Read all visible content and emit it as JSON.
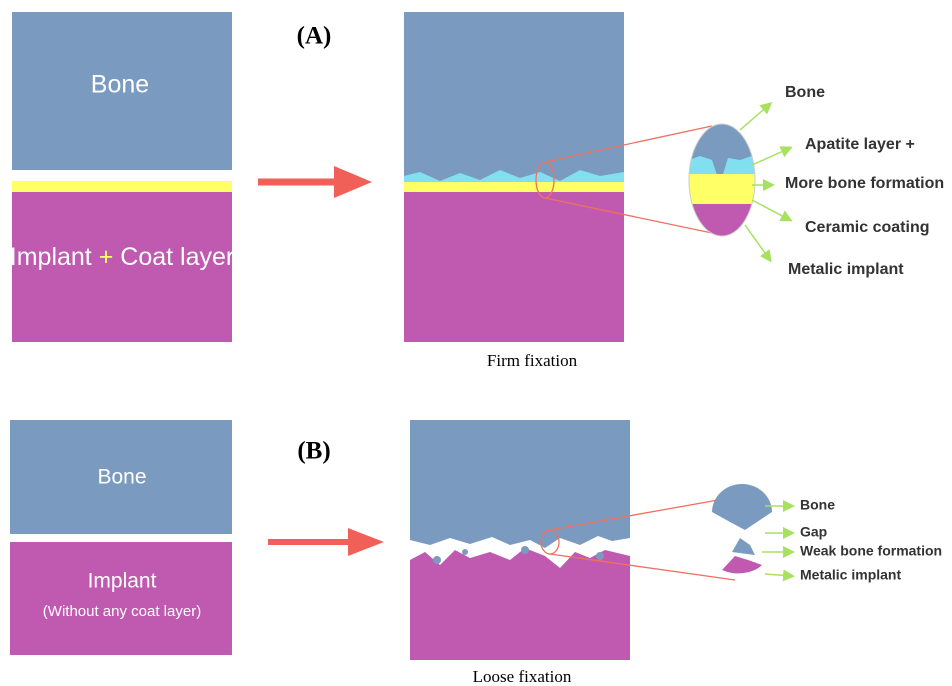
{
  "panel_a": {
    "label": "(A)",
    "left": {
      "bone": "Bone",
      "implant": "Implant",
      "plus": "+",
      "coat": "Coat layer"
    },
    "caption": "Firm fixation",
    "callouts": [
      "Bone",
      "Apatite layer +",
      "More bone formation",
      "Ceramic coating",
      "Metalic implant"
    ]
  },
  "panel_b": {
    "label": "(B)",
    "left": {
      "bone": "Bone",
      "implant": "Implant",
      "note": "(Without any coat layer)"
    },
    "caption": "Loose fixation",
    "callouts": [
      "Bone",
      "Gap",
      "Weak bone formation",
      "Metalic implant"
    ]
  }
}
